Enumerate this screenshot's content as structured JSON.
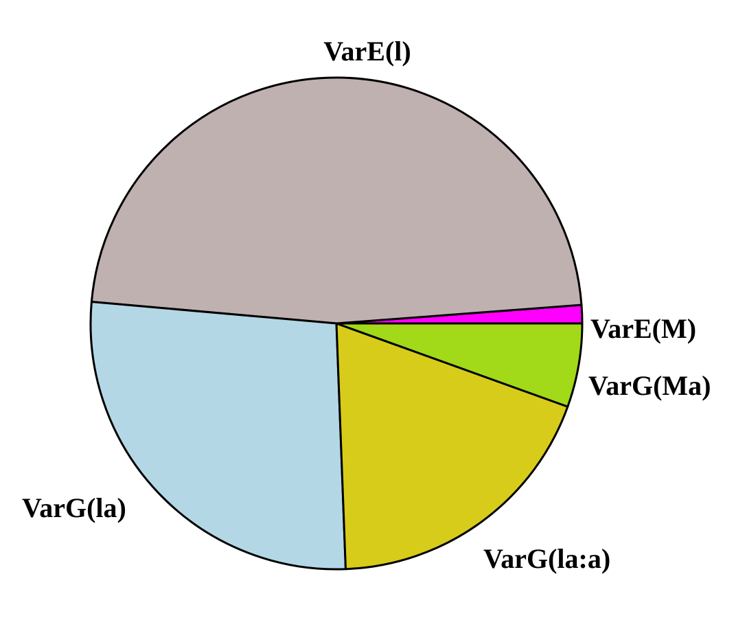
{
  "chart_data": {
    "type": "pie",
    "title": "",
    "start_angle_deg": 0,
    "direction": "counterclockwise",
    "slices": [
      {
        "label": "VarE(M)",
        "value": 1.2,
        "color": "#ff00ff"
      },
      {
        "label": "VarE(l)",
        "value": 47.4,
        "color": "#bfb1b0"
      },
      {
        "label": "VarG(la)",
        "value": 27.0,
        "color": "#b4d7e6"
      },
      {
        "label": "VarG(la:a)",
        "value": 18.9,
        "color": "#d8cc1a"
      },
      {
        "label": "VarG(Ma)",
        "value": 5.5,
        "color": "#a2d918"
      }
    ]
  }
}
